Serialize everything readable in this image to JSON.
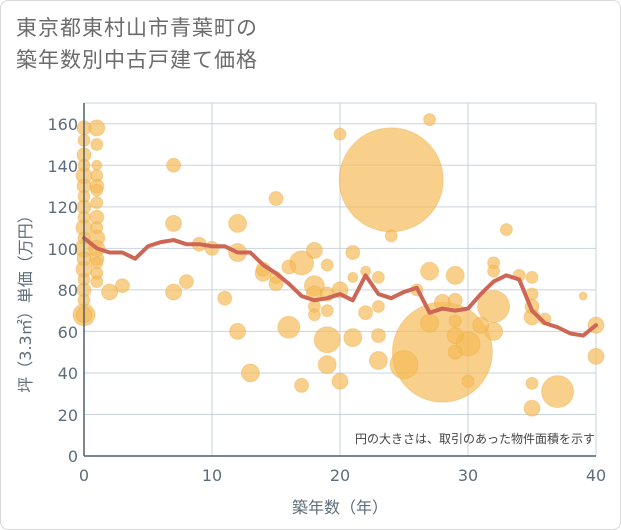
{
  "chart_data": {
    "type": "scatter",
    "title_lines": [
      "東京都東村山市青葉町の",
      "築年数別中古戸建て価格"
    ],
    "xlabel": "築年数（年）",
    "ylabel": "坪（3.3㎡）単価（万円）",
    "note": "円の大きさは、取引のあった物件面積を示す",
    "xlim": [
      0,
      40
    ],
    "ylim": [
      0,
      170
    ],
    "x_ticks": [
      "0",
      "10",
      "20",
      "30",
      "40"
    ],
    "y_ticks": [
      "0",
      "20",
      "40",
      "60",
      "80",
      "100",
      "120",
      "140",
      "160"
    ],
    "grid": true,
    "colors": {
      "bubble": "#f5b955",
      "line": "#cd6655",
      "grid": "#c9d3de",
      "text": "#5d6d7a"
    },
    "series": [
      {
        "type": "line",
        "points": [
          [
            0,
            105
          ],
          [
            1,
            100
          ],
          [
            2,
            98
          ],
          [
            3,
            98
          ],
          [
            4,
            95
          ],
          [
            5,
            101
          ],
          [
            6,
            103
          ],
          [
            7,
            104
          ],
          [
            8,
            102
          ],
          [
            9,
            102
          ],
          [
            10,
            101
          ],
          [
            11,
            101
          ],
          [
            12,
            98
          ],
          [
            13,
            98
          ],
          [
            14,
            92
          ],
          [
            15,
            88
          ],
          [
            16,
            83
          ],
          [
            17,
            77
          ],
          [
            18,
            75
          ],
          [
            19,
            76
          ],
          [
            20,
            78
          ],
          [
            21,
            75
          ],
          [
            22,
            87
          ],
          [
            23,
            78
          ],
          [
            24,
            76
          ],
          [
            25,
            79
          ],
          [
            26,
            81
          ],
          [
            27,
            69
          ],
          [
            28,
            71
          ],
          [
            29,
            70
          ],
          [
            30,
            71
          ],
          [
            31,
            78
          ],
          [
            32,
            84
          ],
          [
            33,
            87
          ],
          [
            34,
            85
          ],
          [
            35,
            70
          ],
          [
            36,
            64
          ],
          [
            37,
            62
          ],
          [
            38,
            59
          ],
          [
            39,
            58
          ],
          [
            40,
            63
          ]
        ]
      },
      {
        "type": "bubble",
        "points": [
          [
            0,
            158,
            7
          ],
          [
            0,
            152,
            6
          ],
          [
            0,
            145,
            7
          ],
          [
            0,
            140,
            6
          ],
          [
            0,
            135,
            8
          ],
          [
            0,
            130,
            7
          ],
          [
            0,
            125,
            6
          ],
          [
            0,
            120,
            7
          ],
          [
            0,
            115,
            6
          ],
          [
            0,
            110,
            8
          ],
          [
            0,
            105,
            6
          ],
          [
            0,
            100,
            9
          ],
          [
            0,
            95,
            7
          ],
          [
            0,
            90,
            8
          ],
          [
            0,
            85,
            6
          ],
          [
            0,
            80,
            7
          ],
          [
            0,
            75,
            6
          ],
          [
            0,
            68,
            11
          ],
          [
            0,
            68,
            8
          ],
          [
            1,
            158,
            8
          ],
          [
            1,
            150,
            6
          ],
          [
            1,
            140,
            5
          ],
          [
            1,
            135,
            6
          ],
          [
            1,
            130,
            7
          ],
          [
            1,
            128,
            6
          ],
          [
            1,
            122,
            6
          ],
          [
            1,
            115,
            7
          ],
          [
            1,
            110,
            6
          ],
          [
            1,
            105,
            8
          ],
          [
            1,
            100,
            8
          ],
          [
            1,
            95,
            7
          ],
          [
            1,
            93,
            6
          ],
          [
            1,
            88,
            6
          ],
          [
            1,
            84,
            6
          ],
          [
            2,
            79,
            8
          ],
          [
            3,
            82,
            7
          ],
          [
            7,
            140,
            7
          ],
          [
            7,
            112,
            8
          ],
          [
            7,
            79,
            8
          ],
          [
            8,
            84,
            7
          ],
          [
            9,
            102,
            7
          ],
          [
            10,
            100,
            7
          ],
          [
            11,
            76,
            7
          ],
          [
            12,
            112,
            9
          ],
          [
            12,
            98,
            9
          ],
          [
            12,
            60,
            8
          ],
          [
            13,
            40,
            9
          ],
          [
            14,
            90,
            7
          ],
          [
            14,
            88,
            8
          ],
          [
            15,
            124,
            7
          ],
          [
            15,
            86,
            6
          ],
          [
            15,
            83,
            7
          ],
          [
            16,
            91,
            7
          ],
          [
            16,
            62,
            11
          ],
          [
            17,
            93,
            12
          ],
          [
            17,
            34,
            7
          ],
          [
            18,
            99,
            8
          ],
          [
            18,
            82,
            10
          ],
          [
            18,
            78,
            8
          ],
          [
            18,
            72,
            6
          ],
          [
            18,
            68,
            6
          ],
          [
            19,
            92,
            6
          ],
          [
            19,
            78,
            7
          ],
          [
            19,
            70,
            6
          ],
          [
            19,
            56,
            13
          ],
          [
            19,
            44,
            9
          ],
          [
            20,
            155,
            6
          ],
          [
            20,
            80,
            8
          ],
          [
            20,
            36,
            8
          ],
          [
            21,
            98,
            7
          ],
          [
            21,
            86,
            5
          ],
          [
            21,
            57,
            9
          ],
          [
            22,
            89,
            5
          ],
          [
            22,
            69,
            7
          ],
          [
            23,
            86,
            6
          ],
          [
            23,
            72,
            6
          ],
          [
            23,
            58,
            7
          ],
          [
            23,
            46,
            9
          ],
          [
            24,
            133,
            52
          ],
          [
            24,
            106,
            6
          ],
          [
            25,
            44,
            14
          ],
          [
            26,
            80,
            6
          ],
          [
            27,
            162,
            6
          ],
          [
            27,
            89,
            9
          ],
          [
            27,
            64,
            9
          ],
          [
            28,
            74,
            8
          ],
          [
            28,
            50,
            50
          ],
          [
            29,
            87,
            9
          ],
          [
            29,
            75,
            7
          ],
          [
            29,
            65,
            6
          ],
          [
            29,
            58,
            8
          ],
          [
            29,
            50,
            7
          ],
          [
            30,
            54,
            12
          ],
          [
            30,
            36,
            6
          ],
          [
            31,
            63,
            8
          ],
          [
            32,
            93,
            6
          ],
          [
            32,
            89,
            6
          ],
          [
            32,
            72,
            16
          ],
          [
            32,
            60,
            9
          ],
          [
            33,
            109,
            6
          ],
          [
            34,
            87,
            6
          ],
          [
            35,
            86,
            6
          ],
          [
            35,
            78,
            6
          ],
          [
            35,
            72,
            7
          ],
          [
            35,
            67,
            8
          ],
          [
            35,
            35,
            6
          ],
          [
            35,
            23,
            8
          ],
          [
            36,
            66,
            6
          ],
          [
            37,
            31,
            16
          ],
          [
            39,
            77,
            4
          ],
          [
            40,
            63,
            8
          ],
          [
            40,
            48,
            8
          ]
        ]
      }
    ]
  }
}
